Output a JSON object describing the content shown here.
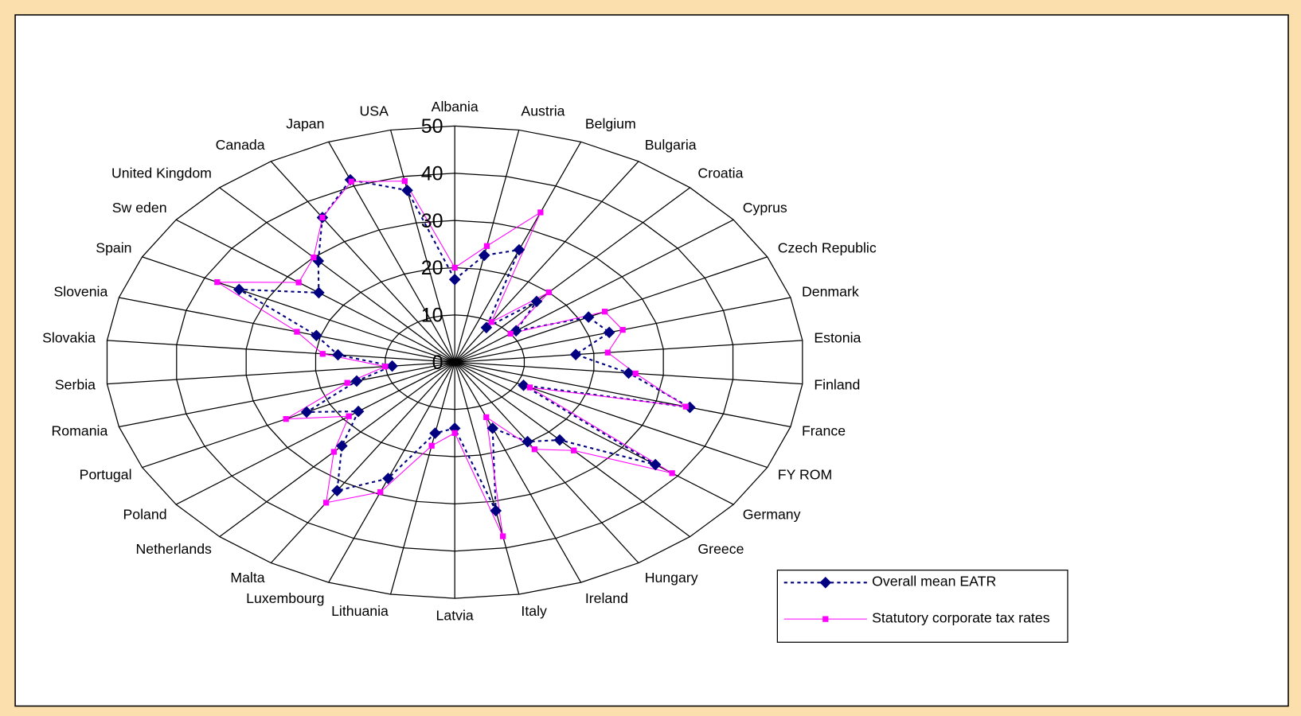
{
  "chart_data": {
    "type": "radar",
    "categories": [
      "Albania",
      "Austria",
      "Belgium",
      "Bulgaria",
      "Croatia",
      "Cyprus",
      "Czech Republic",
      "Denmark",
      "Estonia",
      "Finland",
      "France",
      "FY ROM",
      "Germany",
      "Greece",
      "Hungary",
      "Ireland",
      "Italy",
      "Latvia",
      "Lithuania",
      "Luxembourg",
      "Malta",
      "Netherlands",
      "Poland",
      "Portugal",
      "Romania",
      "Serbia",
      "Slovakia",
      "Slovenia",
      "Spain",
      "Sw eden",
      "United Kingdom",
      "Canada",
      "Japan",
      "USA"
    ],
    "series": [
      {
        "name": "Overall mean EATR",
        "color": "#000080",
        "values": [
          17.5,
          23,
          25.5,
          8.6,
          17.4,
          11,
          21.4,
          23,
          17.4,
          25,
          35,
          11,
          36,
          22.3,
          19.8,
          15,
          32,
          14,
          15.3,
          26.4,
          32,
          24,
          17.3,
          23.7,
          14.6,
          9,
          16.8,
          20.6,
          34.5,
          24.4,
          29,
          36,
          41.4,
          37
        ]
      },
      {
        "name": "Statutory corporate tax rates",
        "color": "#ff00ff",
        "values": [
          20,
          25,
          34,
          10,
          20,
          10,
          24,
          25,
          22,
          26,
          34.4,
          12,
          39,
          25.3,
          21.7,
          12.5,
          37.5,
          15,
          18,
          29.5,
          35,
          25.7,
          19,
          27,
          16,
          10,
          19,
          23.5,
          38,
          28,
          30,
          36,
          41,
          39
        ]
      }
    ],
    "rlim": [
      0,
      50
    ],
    "rticks": [
      0,
      10,
      20,
      30,
      40,
      50
    ]
  }
}
